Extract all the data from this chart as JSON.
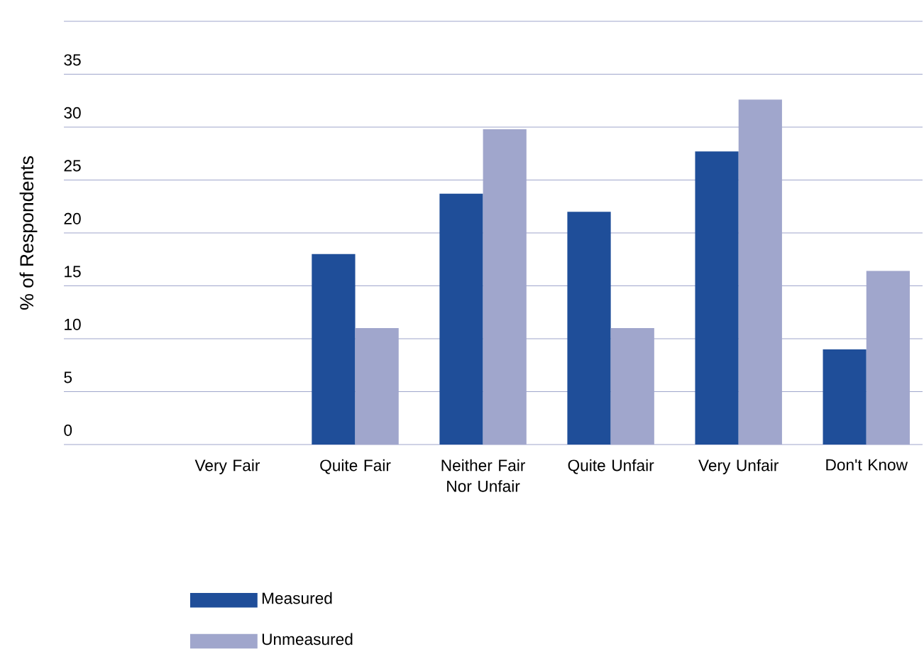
{
  "chart_data": {
    "type": "bar",
    "ylabel": "% of Respondents",
    "categories": [
      "Very Fair",
      "Quite Fair",
      "Neither Fair Nor Unfair",
      "Quite Unfair",
      "Very Unfair",
      "Don't Know"
    ],
    "series": [
      {
        "name": "Measured",
        "color": "#1f4e99",
        "values": [
          0,
          18,
          23.7,
          22,
          27.7,
          9
        ]
      },
      {
        "name": "Unmeasured",
        "color": "#a0a6cc",
        "values": [
          0,
          11,
          29.8,
          11,
          32.6,
          16.4
        ]
      }
    ],
    "ylim": [
      0,
      40
    ],
    "yticks": [
      0,
      5,
      10,
      15,
      20,
      25,
      30,
      35,
      {
        "value": 40,
        "label": null
      }
    ],
    "grid": "y",
    "legend": "bottom left"
  }
}
